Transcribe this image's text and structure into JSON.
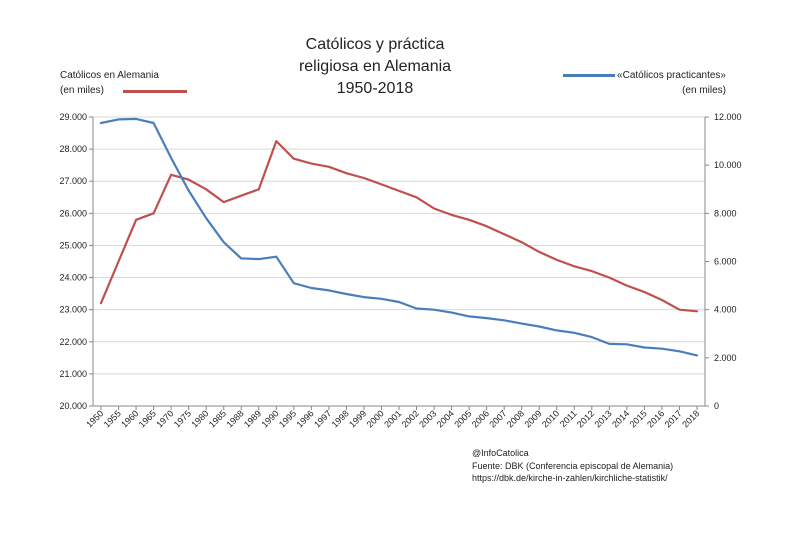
{
  "chart_data": {
    "type": "line",
    "title_lines": [
      "Católicos y práctica",
      "religiosa en Alemania",
      "1950-2018"
    ],
    "legend_left": {
      "name": "Católicos en Alemania",
      "unit": "(en miles)",
      "color": "#c0504d"
    },
    "legend_right": {
      "name": "«Católicos practicantes»",
      "unit": "(en miles)",
      "color": "#4a7ebb"
    },
    "categories": [
      "1950",
      "1955",
      "1960",
      "1965",
      "1970",
      "1975",
      "1980",
      "1985",
      "1988",
      "1989",
      "1990",
      "1995",
      "1996",
      "1997",
      "1998",
      "1999",
      "2000",
      "2001",
      "2002",
      "2003",
      "2004",
      "2005",
      "2006",
      "2007",
      "2008",
      "2009",
      "2010",
      "2011",
      "2012",
      "2013",
      "2014",
      "2015",
      "2016",
      "2017",
      "2018"
    ],
    "y_left": {
      "min": 20000,
      "max": 29000,
      "ticks": [
        "20.000",
        "21.000",
        "22.000",
        "23.000",
        "24.000",
        "25.000",
        "26.000",
        "27.000",
        "28.000",
        "29.000"
      ]
    },
    "y_right": {
      "min": 0,
      "max": 12000,
      "ticks": [
        "0",
        "2.000",
        "4.000",
        "6.000",
        "8.000",
        "10.000",
        "12.000"
      ]
    },
    "series": [
      {
        "name": "Católicos en Alemania",
        "axis": "left",
        "color": "#c0504d",
        "values": [
          23200,
          24500,
          25800,
          26000,
          27200,
          27050,
          26750,
          26350,
          26550,
          26750,
          28250,
          27700,
          27550,
          27450,
          27250,
          27100,
          26900,
          26700,
          26500,
          26150,
          25950,
          25800,
          25600,
          25350,
          25100,
          24800,
          24550,
          24350,
          24200,
          24000,
          23750,
          23550,
          23300,
          23000,
          22950
        ]
      },
      {
        "name": "«Católicos practicantes»",
        "axis": "right",
        "color": "#4a7ebb",
        "values": [
          11750,
          11900,
          11920,
          11750,
          10300,
          8950,
          7800,
          6800,
          6130,
          6100,
          6200,
          5100,
          4900,
          4800,
          4650,
          4520,
          4450,
          4320,
          4050,
          4000,
          3880,
          3720,
          3650,
          3560,
          3420,
          3300,
          3140,
          3040,
          2860,
          2580,
          2560,
          2430,
          2380,
          2270,
          2100
        ]
      }
    ]
  },
  "source": {
    "handle": "@InfoCatolica",
    "line1": "Fuente: DBK (Conferencia episcopal de Alemania)",
    "line2": "https://dbk.de/kirche-in-zahlen/kirchliche-statistik/"
  }
}
